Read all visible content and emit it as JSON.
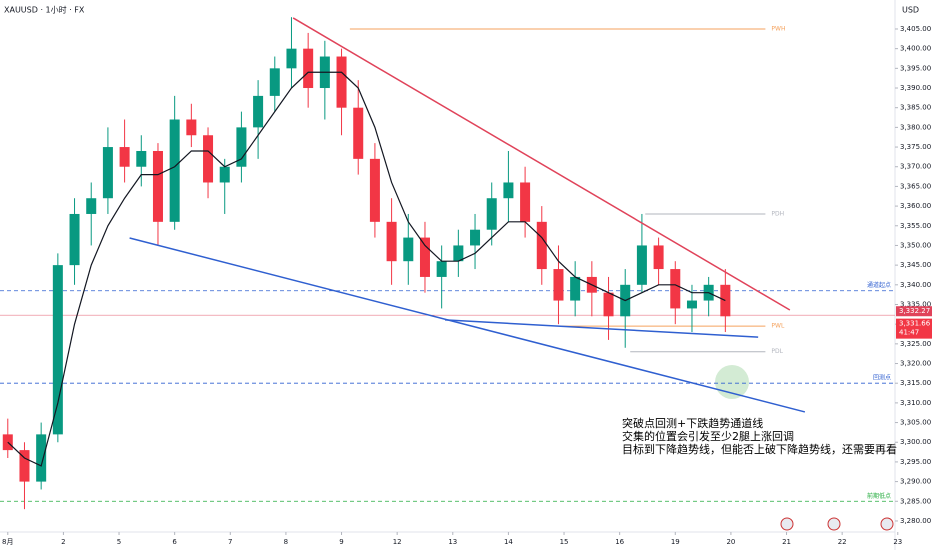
{
  "chart_data": {
    "type": "candlestick",
    "title": "XAUUSD · 1小时 · FX",
    "currency": "USD",
    "xlim": [
      -0.14,
      15.95
    ],
    "ylim": [
      3277.5,
      3410
    ],
    "xticks": [
      {
        "value": 0,
        "label": "8月"
      },
      {
        "value": 1,
        "label": "2"
      },
      {
        "value": 2,
        "label": "5"
      },
      {
        "value": 3,
        "label": "6"
      },
      {
        "value": 4,
        "label": "7"
      },
      {
        "value": 5,
        "label": "8"
      },
      {
        "value": 6,
        "label": "9"
      },
      {
        "value": 7,
        "label": "12"
      },
      {
        "value": 8,
        "label": "13"
      },
      {
        "value": 9,
        "label": "14"
      },
      {
        "value": 10,
        "label": "15"
      },
      {
        "value": 11,
        "label": "16"
      },
      {
        "value": 12,
        "label": "19"
      },
      {
        "value": 13,
        "label": "20"
      },
      {
        "value": 14,
        "label": "21"
      },
      {
        "value": 15,
        "label": "22"
      },
      {
        "value": 16,
        "label": "23"
      }
    ],
    "yticks": [
      {
        "value": 3280,
        "label": "3,280.00"
      },
      {
        "value": 3285,
        "label": "3,285.00"
      },
      {
        "value": 3290,
        "label": "3,290.00"
      },
      {
        "value": 3295,
        "label": "3,295.00"
      },
      {
        "value": 3300,
        "label": "3,300.00"
      },
      {
        "value": 3305,
        "label": "3,305.00"
      },
      {
        "value": 3310,
        "label": "3,310.00"
      },
      {
        "value": 3315,
        "label": "3,315.00"
      },
      {
        "value": 3320,
        "label": "3,320.00"
      },
      {
        "value": 3325,
        "label": "3,325.00"
      },
      {
        "value": 3330,
        "label": "3,330.00"
      },
      {
        "value": 3335,
        "label": "3,335.00"
      },
      {
        "value": 3340,
        "label": "3,340.00"
      },
      {
        "value": 3345,
        "label": "3,345.00"
      },
      {
        "value": 3350,
        "label": "3,350.00"
      },
      {
        "value": 3355,
        "label": "3,355.00"
      },
      {
        "value": 3360,
        "label": "3,360.00"
      },
      {
        "value": 3365,
        "label": "3,365.00"
      },
      {
        "value": 3370,
        "label": "3,370.00"
      },
      {
        "value": 3375,
        "label": "3,375.00"
      },
      {
        "value": 3380,
        "label": "3,380.00"
      },
      {
        "value": 3385,
        "label": "3,385.00"
      },
      {
        "value": 3390,
        "label": "3,390.00"
      },
      {
        "value": 3395,
        "label": "3,395.00"
      },
      {
        "value": 3400,
        "label": "3,400.00"
      },
      {
        "value": 3405,
        "label": "3,405.00"
      }
    ],
    "up_color": "#089981",
    "down_color": "#f23645",
    "x": [
      0.0,
      0.3,
      0.6,
      0.9,
      1.2,
      1.5,
      1.8,
      2.1,
      2.4,
      2.7,
      3.0,
      3.3,
      3.6,
      3.9,
      4.2,
      4.5,
      4.8,
      5.1,
      5.4,
      5.7,
      6.0,
      6.3,
      6.6,
      6.9,
      7.2,
      7.5,
      7.8,
      8.1,
      8.4,
      8.7,
      9.0,
      9.3,
      9.6,
      9.9,
      10.2,
      10.5,
      10.8,
      11.1,
      11.4,
      11.7,
      12.0,
      12.3,
      12.6,
      12.9
    ],
    "open": [
      3302,
      3298,
      3290,
      3302,
      3345,
      3358,
      3362,
      3375,
      3370,
      3374,
      3356,
      3382,
      3378,
      3366,
      3370,
      3380,
      3388,
      3395,
      3400,
      3390,
      3398,
      3385,
      3372,
      3356,
      3346,
      3352,
      3342,
      3346,
      3350,
      3354,
      3362,
      3366,
      3356,
      3344,
      3336,
      3342,
      3338,
      3332,
      3340,
      3350,
      3344,
      3334,
      3336,
      3340
    ],
    "high": [
      3306,
      3300,
      3305,
      3348,
      3362,
      3366,
      3380,
      3382,
      3378,
      3376,
      3388,
      3386,
      3380,
      3372,
      3384,
      3392,
      3398,
      3408,
      3404,
      3402,
      3400,
      3392,
      3376,
      3362,
      3358,
      3356,
      3350,
      3354,
      3358,
      3366,
      3374,
      3370,
      3360,
      3350,
      3346,
      3346,
      3342,
      3344,
      3358,
      3352,
      3346,
      3340,
      3342,
      3344
    ],
    "low": [
      3296,
      3283,
      3288,
      3300,
      3340,
      3350,
      3358,
      3366,
      3365,
      3350,
      3354,
      3375,
      3362,
      3358,
      3366,
      3372,
      3384,
      3390,
      3385,
      3382,
      3378,
      3368,
      3352,
      3340,
      3340,
      3338,
      3334,
      3342,
      3344,
      3350,
      3356,
      3352,
      3340,
      3330,
      3332,
      3332,
      3326,
      3324,
      3338,
      3340,
      3330,
      3328,
      3332,
      3328
    ],
    "close": [
      3298,
      3290,
      3302,
      3345,
      3358,
      3362,
      3375,
      3370,
      3374,
      3356,
      3382,
      3378,
      3366,
      3370,
      3380,
      3388,
      3395,
      3400,
      3390,
      3398,
      3385,
      3372,
      3356,
      3346,
      3352,
      3342,
      3346,
      3350,
      3354,
      3362,
      3366,
      3356,
      3344,
      3336,
      3342,
      3338,
      3332,
      3340,
      3350,
      3344,
      3334,
      3336,
      3340,
      3332
    ],
    "ma": [
      3300,
      3296,
      3294,
      3310,
      3330,
      3345,
      3355,
      3362,
      3368,
      3368,
      3370,
      3374,
      3374,
      3370,
      3372,
      3378,
      3384,
      3390,
      3394,
      3394,
      3394,
      3390,
      3380,
      3366,
      3356,
      3350,
      3346,
      3346,
      3348,
      3352,
      3356,
      3356,
      3352,
      3346,
      3342,
      3340,
      3338,
      3336,
      3338,
      3340,
      3340,
      3338,
      3338,
      3336
    ],
    "trendlines": [
      {
        "color": "#e0435a",
        "points": [
          [
            5.13,
            3407.8
          ],
          [
            14.06,
            3333.6
          ]
        ]
      },
      {
        "color": "#2f5fd0",
        "points": [
          [
            2.19,
            3351.9
          ],
          [
            14.33,
            3307.7
          ]
        ]
      },
      {
        "color": "#2f5fd0",
        "points": [
          [
            7.86,
            3331.1
          ],
          [
            13.49,
            3326.7
          ]
        ]
      }
    ],
    "levels": [
      {
        "label": "PWH",
        "value": 3405,
        "start": 6.15,
        "end": 13.62,
        "color": "#f5a25d"
      },
      {
        "label": "PDH",
        "value": 3358,
        "start": 11.46,
        "end": 13.62,
        "color": "#b2b5be"
      },
      {
        "label": "PWL",
        "value": 3329.5,
        "start": 9.93,
        "end": 13.62,
        "color": "#f5a25d"
      },
      {
        "label": "PDL",
        "value": 3323,
        "start": 11.19,
        "end": 13.62,
        "color": "#b2b5be"
      }
    ],
    "dashed_levels": [
      {
        "label": "通道起点",
        "value": 3338.5,
        "color": "#2f5fd0"
      },
      {
        "label": "回测点",
        "value": 3315,
        "color": "#2f5fd0"
      },
      {
        "label": "前期低点",
        "value": 3285,
        "color": "#22ab3c"
      }
    ],
    "price_tags": [
      {
        "value": 3332.27,
        "label": "3,332.27",
        "color": "#e0435a"
      },
      {
        "value": 3331.66,
        "label": "3,331.66",
        "color": "#f23645"
      }
    ],
    "countdown": "41:47",
    "annotations": [
      "突破点回测+下跌趋势通道线",
      "交集的位置会引发至少2腿上涨回调",
      "目标到下降趋势线，但能否上破下降趋势线，还需要再看"
    ]
  }
}
